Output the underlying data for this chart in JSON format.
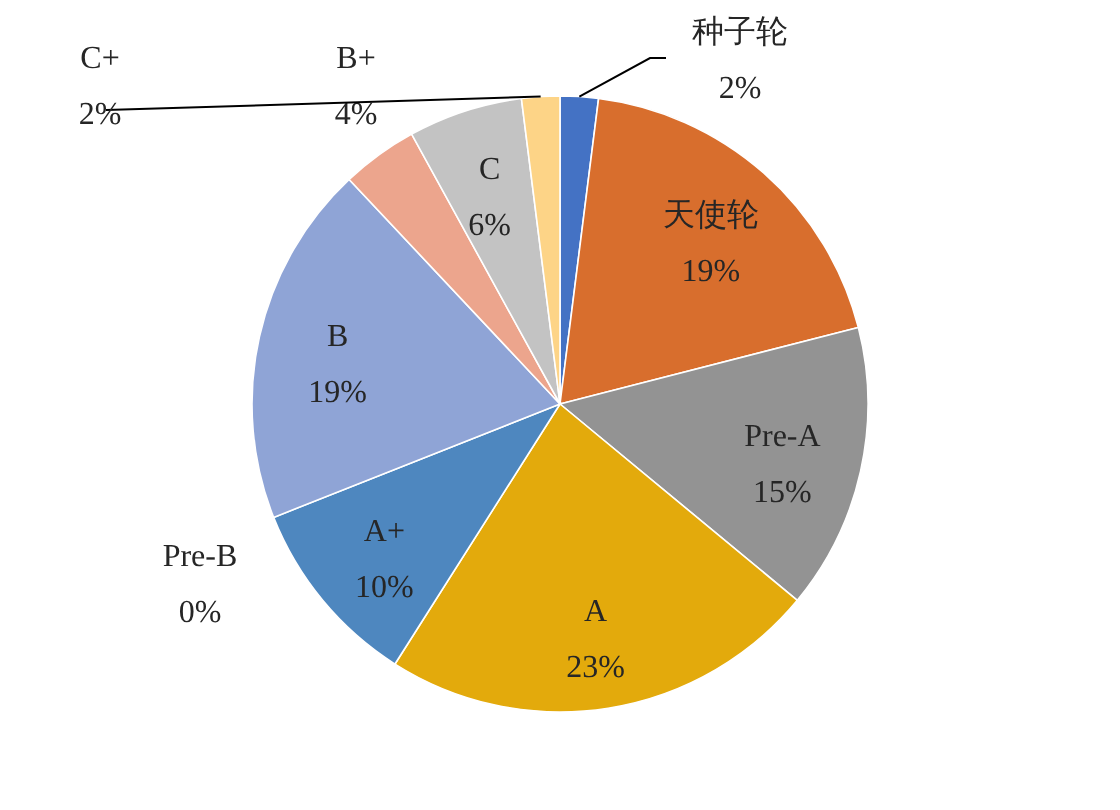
{
  "chart_data": {
    "type": "pie",
    "categories": [
      "种子轮",
      "天使轮",
      "Pre-A",
      "A",
      "A+",
      "Pre-B",
      "B",
      "B+",
      "C",
      "C+"
    ],
    "values": [
      2,
      19,
      15,
      23,
      10,
      0,
      19,
      4,
      6,
      2
    ],
    "value_labels": [
      "2%",
      "19%",
      "15%",
      "23%",
      "10%",
      "0%",
      "19%",
      "4%",
      "6%",
      "2%"
    ],
    "colors": [
      "#4472c4",
      "#d86e2d",
      "#939393",
      "#e3aa0c",
      "#4e87bf",
      null,
      "#8fa4d6",
      "#eca58d",
      "#c3c3c3",
      "#fdd487"
    ],
    "legend": false
  }
}
